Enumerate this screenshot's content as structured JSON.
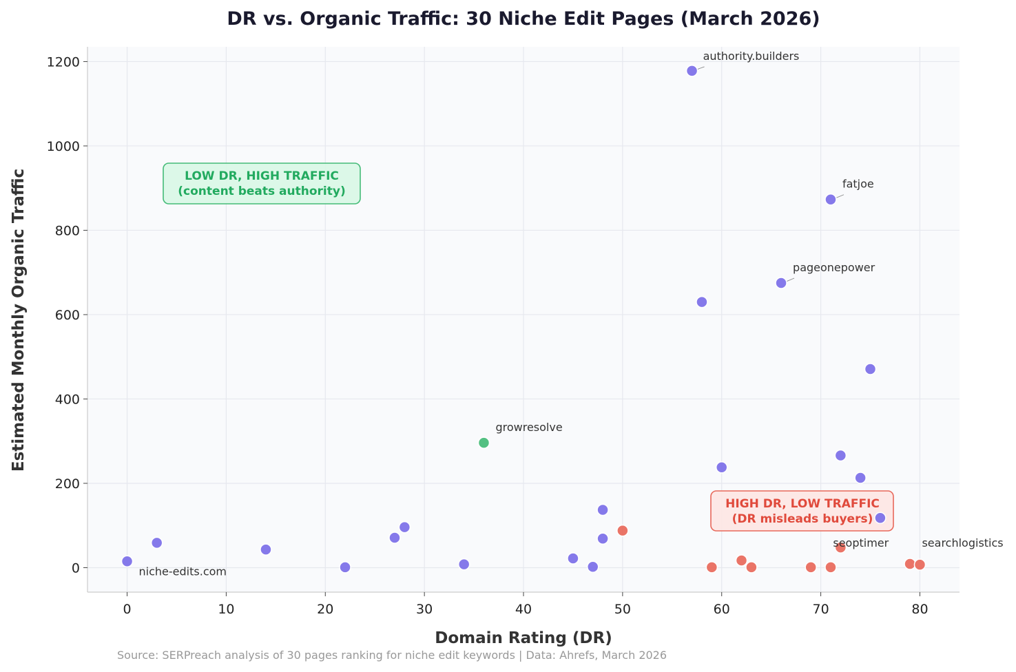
{
  "chart_data": {
    "type": "scatter",
    "title": "DR vs. Organic Traffic: 30 Niche Edit Pages (March 2026)",
    "xlabel": "Domain Rating (DR)",
    "ylabel": "Estimated Monthly Organic Traffic",
    "xlim": [
      -4,
      84
    ],
    "ylim": [
      -58,
      1235
    ],
    "xticks": [
      0,
      10,
      20,
      30,
      40,
      50,
      60,
      70,
      80
    ],
    "yticks": [
      0,
      200,
      400,
      600,
      800,
      1000,
      1200
    ],
    "grid": true,
    "colors": {
      "standard": "#7b6ee8",
      "low_dr_high_traffic": "#44bb77",
      "high_dr_low_traffic": "#e8685a"
    },
    "points": [
      {
        "x": 57,
        "y": 1178,
        "group": "standard",
        "label": "authority.builders"
      },
      {
        "x": 71,
        "y": 873,
        "group": "standard",
        "label": "fatjoe"
      },
      {
        "x": 66,
        "y": 675,
        "group": "standard",
        "label": "pageonepower"
      },
      {
        "x": 58,
        "y": 630,
        "group": "standard"
      },
      {
        "x": 75,
        "y": 471,
        "group": "standard"
      },
      {
        "x": 36,
        "y": 296,
        "group": "low_dr_high_traffic",
        "label": "growresolve"
      },
      {
        "x": 72,
        "y": 266,
        "group": "standard"
      },
      {
        "x": 60,
        "y": 238,
        "group": "standard"
      },
      {
        "x": 74,
        "y": 213,
        "group": "standard"
      },
      {
        "x": 48,
        "y": 137,
        "group": "standard"
      },
      {
        "x": 76,
        "y": 118,
        "group": "standard"
      },
      {
        "x": 28,
        "y": 96,
        "group": "standard"
      },
      {
        "x": 50,
        "y": 88,
        "group": "high_dr_low_traffic"
      },
      {
        "x": 27,
        "y": 71,
        "group": "standard"
      },
      {
        "x": 48,
        "y": 69,
        "group": "standard"
      },
      {
        "x": 3,
        "y": 59,
        "group": "standard"
      },
      {
        "x": 72,
        "y": 48,
        "group": "high_dr_low_traffic",
        "label": "seoptimer"
      },
      {
        "x": 14,
        "y": 43,
        "group": "standard"
      },
      {
        "x": 45,
        "y": 22,
        "group": "standard"
      },
      {
        "x": 62,
        "y": 17,
        "group": "high_dr_low_traffic"
      },
      {
        "x": 0,
        "y": 15,
        "group": "standard",
        "label": "niche-edits.com"
      },
      {
        "x": 79,
        "y": 9,
        "group": "high_dr_low_traffic"
      },
      {
        "x": 34,
        "y": 8,
        "group": "standard"
      },
      {
        "x": 80,
        "y": 7,
        "group": "high_dr_low_traffic",
        "label": "searchlogistics"
      },
      {
        "x": 47,
        "y": 2,
        "group": "standard"
      },
      {
        "x": 22,
        "y": 1,
        "group": "standard"
      },
      {
        "x": 59,
        "y": 1,
        "group": "high_dr_low_traffic"
      },
      {
        "x": 63,
        "y": 1,
        "group": "high_dr_low_traffic"
      },
      {
        "x": 69,
        "y": 1,
        "group": "high_dr_low_traffic"
      },
      {
        "x": 71,
        "y": 1,
        "group": "high_dr_low_traffic"
      }
    ],
    "annotations": [
      {
        "lines": [
          "LOW DR, HIGH TRAFFIC",
          "(content beats authority)"
        ],
        "color": "#22aa5f",
        "bg": "#d9f7e6",
        "border": "#44bb77"
      },
      {
        "lines": [
          "HIGH DR, LOW TRAFFIC",
          "(DR misleads buyers)"
        ],
        "color": "#e04a3c",
        "bg": "#fde6e4",
        "border": "#e8685a"
      }
    ],
    "source": "Source: SERPreach analysis of 30 pages ranking for niche edit keywords  |  Data: Ahrefs, March 2026"
  }
}
